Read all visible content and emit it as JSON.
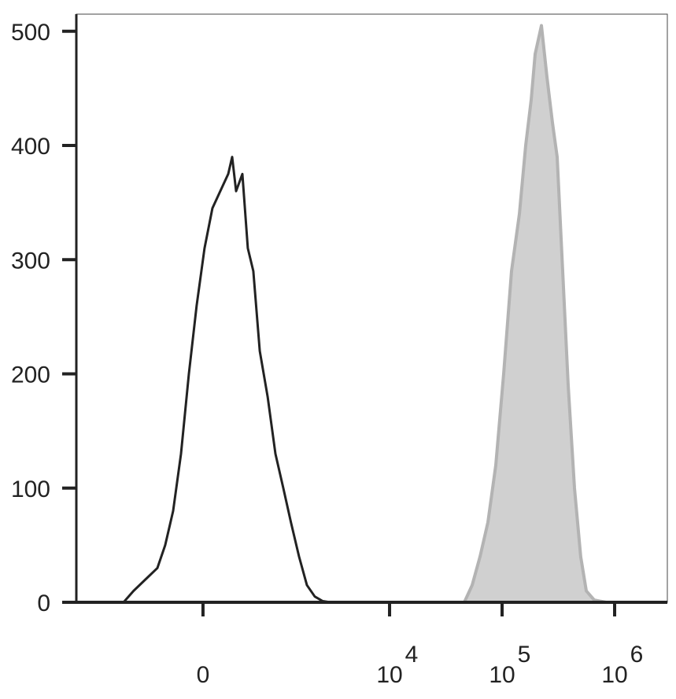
{
  "chart_data": {
    "type": "histogram-overlay",
    "xscale": "arcsinh",
    "xlim": [
      -2920,
      2940000
    ],
    "xticks": [
      0,
      {
        "value": 10000,
        "label": "10",
        "exponent": "4"
      },
      {
        "value": 100000,
        "label": "10",
        "exponent": "5"
      },
      {
        "value": 1000000,
        "label": "10",
        "exponent": "6"
      }
    ],
    "ylim": [
      0,
      515
    ],
    "yticks": [
      0,
      100,
      200,
      300,
      400,
      500
    ],
    "series": [
      {
        "color": "#222222",
        "fill": "none",
        "x": [
          -1075,
          -858,
          -647,
          -473,
          -375,
          -286,
          -205,
          -129,
          -57,
          14,
          85,
          159,
          237,
          278,
          321,
          394,
          462,
          538,
          634,
          767,
          918,
          1096,
          1294,
          1540,
          1817,
          2143,
          2526,
          2979
        ],
        "values": [
          0,
          10,
          20,
          30,
          50,
          80,
          130,
          200,
          260,
          310,
          345,
          360,
          375,
          390,
          360,
          375,
          310,
          290,
          220,
          180,
          130,
          100,
          70,
          40,
          15,
          5,
          1,
          0
        ]
      },
      {
        "color": "#b3b3b3",
        "fill": "#d0d0d0",
        "x": [
          46150,
          54200,
          63700,
          74800,
          87900,
          103200,
          121300,
          142500,
          162100,
          181400,
          196500,
          223500,
          250200,
          280200,
          308500,
          345400,
          386600,
          439700,
          499800,
          559500,
          657600,
          837300
        ],
        "values": [
          0,
          15,
          40,
          70,
          120,
          200,
          290,
          340,
          400,
          440,
          480,
          505,
          460,
          420,
          390,
          290,
          190,
          100,
          40,
          10,
          2,
          0
        ]
      }
    ]
  }
}
